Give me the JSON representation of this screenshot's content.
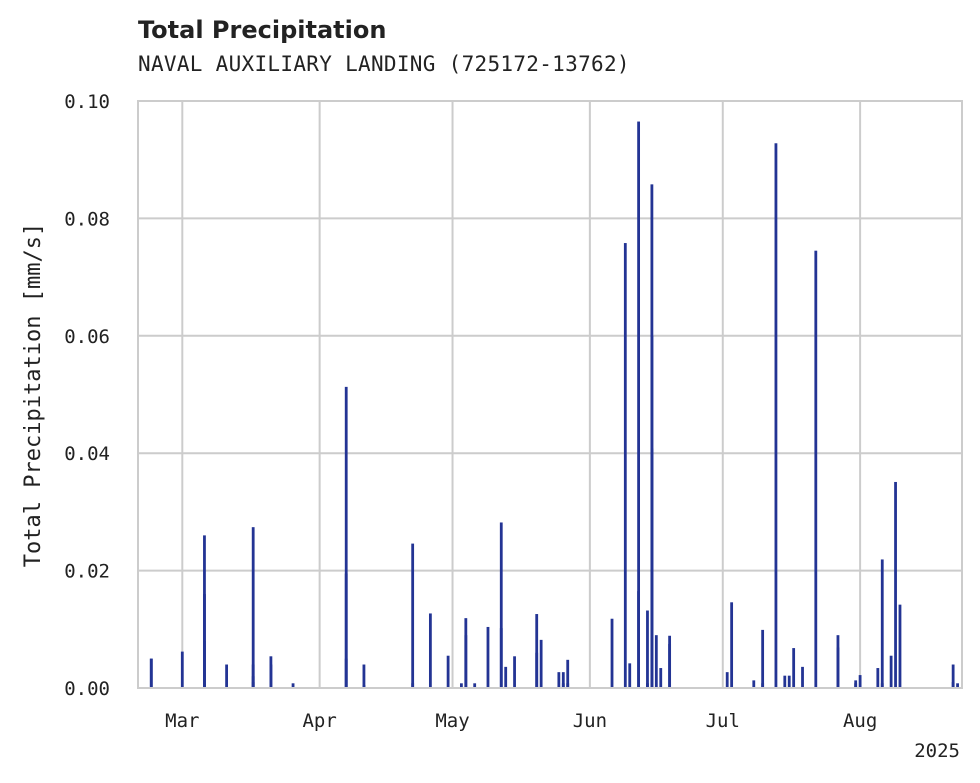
{
  "chart_data": {
    "type": "bar",
    "title": "Total Precipitation",
    "subtitle": "NAVAL AUXILIARY LANDING (725172-13762)",
    "ylabel": "Total Precipitation [mm/s]",
    "xlabel": "",
    "year_label": "2025",
    "xlim": [
      "2025-02-19",
      "2025-08-24"
    ],
    "ylim": [
      0,
      0.1
    ],
    "yticks": [
      0.0,
      0.02,
      0.04,
      0.06,
      0.08,
      0.1
    ],
    "ytick_labels": [
      "0.00",
      "0.02",
      "0.04",
      "0.06",
      "0.08",
      "0.10"
    ],
    "xticks": [
      "2025-03-01",
      "2025-04-01",
      "2025-05-01",
      "2025-06-01",
      "2025-07-01",
      "2025-08-01"
    ],
    "xtick_labels": [
      "Mar",
      "Apr",
      "May",
      "Jun",
      "Jul",
      "Aug"
    ],
    "grid": true,
    "bar_color": "#233494",
    "x": [
      "2025-02-22",
      "2025-02-22",
      "2025-03-01",
      "2025-03-06",
      "2025-03-06",
      "2025-03-06",
      "2025-03-06",
      "2025-03-11",
      "2025-03-17",
      "2025-03-17",
      "2025-03-17",
      "2025-03-17",
      "2025-03-21",
      "2025-03-21",
      "2025-03-26",
      "2025-04-07",
      "2025-04-07",
      "2025-04-07",
      "2025-04-11",
      "2025-04-11",
      "2025-04-22",
      "2025-04-22",
      "2025-04-26",
      "2025-04-30",
      "2025-05-03",
      "2025-05-04",
      "2025-05-04",
      "2025-05-06",
      "2025-05-09",
      "2025-05-12",
      "2025-05-12",
      "2025-05-13",
      "2025-05-15",
      "2025-05-20",
      "2025-05-20",
      "2025-05-21",
      "2025-05-25",
      "2025-05-26",
      "2025-05-26",
      "2025-05-27",
      "2025-05-27",
      "2025-06-06",
      "2025-06-09",
      "2025-06-10",
      "2025-06-12",
      "2025-06-12",
      "2025-06-14",
      "2025-06-14",
      "2025-06-15",
      "2025-06-15",
      "2025-06-15",
      "2025-06-16",
      "2025-06-17",
      "2025-06-19",
      "2025-06-19",
      "2025-07-02",
      "2025-07-03",
      "2025-07-08",
      "2025-07-10",
      "2025-07-10",
      "2025-07-13",
      "2025-07-15",
      "2025-07-16",
      "2025-07-17",
      "2025-07-19",
      "2025-07-22",
      "2025-07-27",
      "2025-07-27",
      "2025-07-31",
      "2025-07-31",
      "2025-08-01",
      "2025-08-05",
      "2025-08-06",
      "2025-08-06",
      "2025-08-08",
      "2025-08-09",
      "2025-08-10",
      "2025-08-22",
      "2025-08-22",
      "2025-08-23"
    ],
    "values": [
      0.005,
      0.005,
      0.0062,
      0.026,
      0.016,
      0.008,
      0.0007,
      0.004,
      0.0274,
      0.004,
      0.001,
      0.002,
      0.0054,
      0.004,
      0.0008,
      0.0513,
      0.0195,
      0.005,
      0.004,
      0.0005,
      0.0246,
      0.0008,
      0.0127,
      0.0055,
      0.0008,
      0.0119,
      0.009,
      0.0008,
      0.0104,
      0.0282,
      0.0102,
      0.0036,
      0.0054,
      0.0126,
      0.006,
      0.0082,
      0.0027,
      0.0027,
      0.0008,
      0.0048,
      0.0008,
      0.0118,
      0.0758,
      0.0042,
      0.0965,
      0.0165,
      0.0132,
      0.0008,
      0.0858,
      0.06,
      0.0408,
      0.009,
      0.0034,
      0.0089,
      0.0075,
      0.0027,
      0.0146,
      0.0013,
      0.0099,
      0.0008,
      0.0928,
      0.0021,
      0.0021,
      0.0068,
      0.0036,
      0.0745,
      0.0069,
      0.009,
      0.0013,
      0.0008,
      0.0022,
      0.0034,
      0.0219,
      0.0008,
      0.0055,
      0.0351,
      0.0142,
      0.001,
      0.004,
      0.0008
    ]
  }
}
